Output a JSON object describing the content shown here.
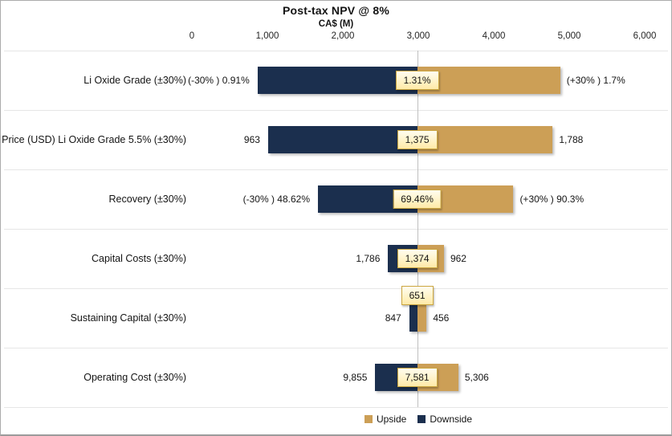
{
  "chart_data": {
    "type": "bar",
    "variant": "tornado-sensitivity",
    "title": "Post-tax NPV @ 8%",
    "axis_title": "CA$ (M)",
    "x_ticks": [
      "0",
      "1,000",
      "2,000",
      "3,000",
      "4,000",
      "5,000",
      "6,000"
    ],
    "x_tick_values": [
      0,
      1000,
      2000,
      3000,
      4000,
      5000,
      6000
    ],
    "xlim": [
      0,
      6000
    ],
    "base_value": 2985,
    "grid": "horizontal-category-lines",
    "legend_position": "bottom-center",
    "legend": [
      {
        "name": "Upside",
        "color": "#CC9F56"
      },
      {
        "name": "Downside",
        "color": "#1B2F4E"
      }
    ],
    "rows": [
      {
        "category": "Li Oxide Grade  (±30%)",
        "down_label": "(-30% ) 0.91%",
        "center_label": "1.31%",
        "up_label": "(+30% ) 1.7%",
        "down_value": 870,
        "up_value": 4880,
        "center_label_above": false
      },
      {
        "category": "Price (USD) Li Oxide Grade 5.5%  (±30%)",
        "down_label": "963",
        "center_label": "1,375",
        "up_label": "1,788",
        "down_value": 1010,
        "up_value": 4780,
        "center_label_above": false
      },
      {
        "category": "Recovery (±30%)",
        "down_label": "(-30% ) 48.62%",
        "center_label": "69.46%",
        "up_label": "(+30% ) 90.3%",
        "down_value": 1670,
        "up_value": 4260,
        "center_label_above": false
      },
      {
        "category": "Capital Costs (±30%)",
        "down_label": "1,786",
        "center_label": "1,374",
        "up_label": "962",
        "down_value": 2600,
        "up_value": 3340,
        "center_label_above": false
      },
      {
        "category": "Sustaining Capital (±30%)",
        "down_label": "847",
        "center_label": "651",
        "up_label": "456",
        "down_value": 2880,
        "up_value": 3110,
        "center_label_above": true
      },
      {
        "category": "Operating Cost (±30%)",
        "down_label": "9,855",
        "center_label": "7,581",
        "up_label": "5,306",
        "down_value": 2430,
        "up_value": 3530,
        "center_label_above": false
      }
    ],
    "colors": {
      "upside": "#CC9F56",
      "downside": "#1B2F4E",
      "center_line": "#BFBFBF",
      "gridline": "#E6E6E6",
      "label_box_bg": "#FFF2C5",
      "label_box_border": "#CBA63F"
    }
  }
}
